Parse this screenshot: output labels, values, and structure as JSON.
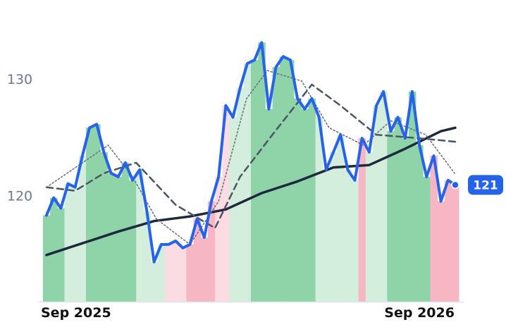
{
  "chart_data": {
    "type": "line",
    "x": [
      0,
      1,
      2,
      3,
      4,
      5,
      6,
      7,
      8,
      9,
      10,
      11,
      12,
      13,
      14,
      15,
      16,
      17,
      18,
      19,
      20,
      21,
      22,
      23,
      24,
      25,
      26,
      27,
      28,
      29,
      30,
      31,
      32,
      33,
      34,
      35,
      36,
      37,
      38,
      39,
      40,
      41,
      42,
      43,
      44,
      45,
      46,
      47,
      48,
      49,
      50,
      51,
      52,
      53,
      54,
      55,
      56,
      57
    ],
    "xlim": [
      0,
      57
    ],
    "xticks": [
      {
        "value": 0,
        "label": "Sep 2025"
      },
      {
        "value": 52,
        "label": "Sep 2026"
      }
    ],
    "ylim": [
      111,
      136
    ],
    "yticks": [
      120,
      130
    ],
    "bar_colors": [
      "#8fd3a8",
      "#8fd3a8",
      "#8fd3a8",
      "#d3eedd",
      "#d3eedd",
      "#d3eedd",
      "#8fd3a8",
      "#8fd3a8",
      "#8fd3a8",
      "#8fd3a8",
      "#8fd3a8",
      "#8fd3a8",
      "#8fd3a8",
      "#d3eedd",
      "#d3eedd",
      "#d3eedd",
      "#d3eedd",
      "#fcdce3",
      "#fcdce3",
      "#fcdce3",
      "#f7b6c4",
      "#f7b6c4",
      "#f7b6c4",
      "#f7b6c4",
      "#fcdce3",
      "#fcdce3",
      "#d3eedd",
      "#d3eedd",
      "#d3eedd",
      "#8fd3a8",
      "#8fd3a8",
      "#8fd3a8",
      "#8fd3a8",
      "#8fd3a8",
      "#8fd3a8",
      "#8fd3a8",
      "#8fd3a8",
      "#8fd3a8",
      "#d3eedd",
      "#d3eedd",
      "#d3eedd",
      "#d3eedd",
      "#d3eedd",
      "#d3eedd",
      "#f7b6c4",
      "#d3eedd",
      "#d3eedd",
      "#d3eedd",
      "#8fd3a8",
      "#8fd3a8",
      "#8fd3a8",
      "#8fd3a8",
      "#8fd3a8",
      "#8fd3a8",
      "#f7b6c4",
      "#f7b6c4",
      "#f7b6c4",
      "#f7b6c4"
    ],
    "series": [
      {
        "color": "#2563eb",
        "values": [
          118.4,
          119.9,
          119.0,
          121.1,
          120.8,
          123.5,
          125.9,
          126.2,
          123.8,
          122.0,
          121.7,
          122.9,
          121.4,
          122.3,
          118.7,
          114.4,
          115.9,
          115.9,
          116.2,
          115.6,
          115.9,
          118.1,
          116.5,
          119.6,
          121.7,
          127.8,
          126.8,
          129.3,
          131.4,
          131.7,
          133.2,
          127.5,
          131.1,
          132.0,
          131.7,
          128.4,
          127.5,
          128.4,
          126.8,
          122.3,
          123.8,
          125.3,
          122.3,
          121.4,
          125.0,
          123.8,
          127.8,
          129.0,
          125.6,
          126.8,
          125.0,
          129.0,
          124.4,
          121.7,
          123.5,
          119.6,
          121.4,
          121
        ]
      },
      {
        "color": "#1e293b",
        "x": [
          0,
          5,
          10,
          15,
          20,
          25,
          30,
          35,
          40,
          45,
          50,
          55,
          57
        ],
        "values": [
          115.0,
          116.0,
          117.0,
          117.9,
          118.3,
          118.9,
          120.3,
          121.3,
          122.5,
          122.7,
          124.1,
          125.6,
          125.9
        ]
      },
      {
        "color": "#4b5563",
        "dash": "9 6",
        "x": [
          0,
          4,
          8,
          12.5,
          18,
          23.5,
          27,
          31.5,
          37,
          41,
          46,
          52,
          57
        ],
        "values": [
          120.8,
          120.5,
          122.0,
          122.9,
          119.3,
          117.3,
          121.7,
          125.3,
          129.6,
          127.8,
          125.3,
          125.0,
          124.7
        ]
      },
      {
        "color": "#6b7280",
        "dash": "2 3",
        "x": [
          0,
          8.6,
          12,
          15.3,
          20,
          24,
          27.9,
          30.8,
          35.6,
          39.4,
          44.2,
          48,
          52.9,
          56.9
        ],
        "values": [
          120.8,
          124.4,
          121.7,
          118.1,
          115.9,
          119.6,
          128.4,
          130.8,
          129.9,
          125.9,
          124.4,
          126.5,
          125.3,
          122.0
        ]
      }
    ]
  }
}
